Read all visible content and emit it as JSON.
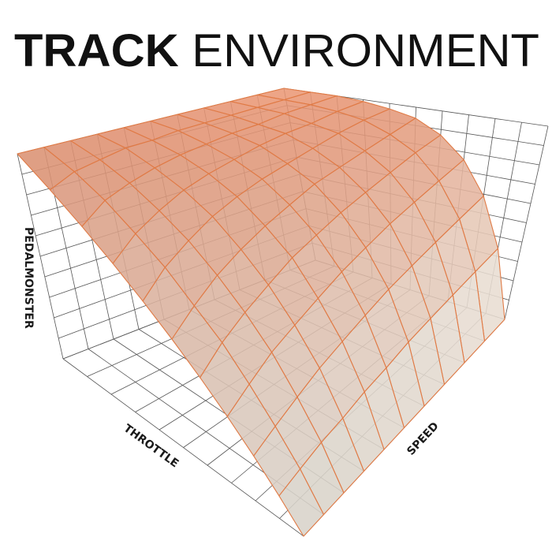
{
  "chart_data": {
    "type": "surface3d",
    "title_bold": "TRACK",
    "title_regular": "ENVIRONMENT",
    "xlabel": "THROTTLE",
    "ylabel": "SPEED",
    "zlabel": "PEDALMONSTER",
    "grid": true,
    "steps": 10,
    "z_by_speed": [
      [
        0,
        10,
        20,
        30,
        40,
        50,
        60,
        70,
        80,
        90,
        100
      ],
      [
        0,
        13,
        25,
        37,
        49,
        59,
        70,
        79,
        88,
        95,
        100
      ],
      [
        0,
        16,
        30,
        44,
        56,
        67,
        77,
        85,
        92,
        97,
        100
      ],
      [
        0,
        18,
        35,
        49,
        62,
        73,
        83,
        90,
        95,
        99,
        100
      ],
      [
        0,
        21,
        39,
        54,
        68,
        78,
        87,
        93,
        97,
        99,
        100
      ],
      [
        0,
        23,
        43,
        59,
        72,
        82,
        90,
        95,
        98,
        100,
        100
      ],
      [
        0,
        26,
        47,
        63,
        76,
        86,
        92,
        97,
        99,
        100,
        100
      ],
      [
        0,
        28,
        50,
        67,
        79,
        88,
        94,
        98,
        99,
        100,
        100
      ],
      [
        0,
        30,
        53,
        70,
        82,
        90,
        96,
        98,
        100,
        100,
        100
      ],
      [
        0,
        32,
        56,
        73,
        85,
        92,
        97,
        99,
        100,
        100,
        100
      ],
      [
        0,
        34,
        59,
        76,
        87,
        94,
        97,
        99,
        100,
        100,
        100
      ]
    ],
    "zlim": [
      0,
      100
    ],
    "colors": {
      "low": "#fffaf0",
      "high": "#ee9a78",
      "mesh": "#e07a45",
      "axes": "#555555"
    }
  }
}
